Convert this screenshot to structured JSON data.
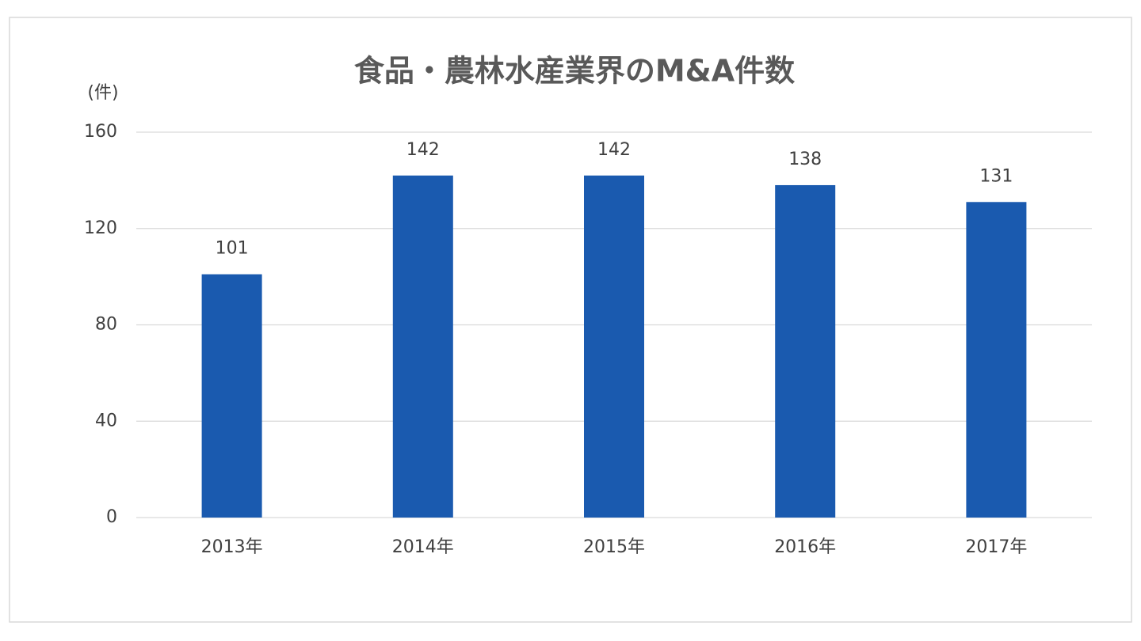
{
  "chart_data": {
    "type": "bar",
    "title": "食品・農林水産業界のM&A件数",
    "y_label": "(件)",
    "categories": [
      "2013年",
      "2014年",
      "2015年",
      "2016年",
      "2017年"
    ],
    "values": [
      101,
      142,
      142,
      138,
      131
    ],
    "color": "#1a5aaf",
    "ylim": [
      0,
      160
    ],
    "yticks": [
      0,
      40,
      80,
      120,
      160
    ],
    "grid": true
  }
}
